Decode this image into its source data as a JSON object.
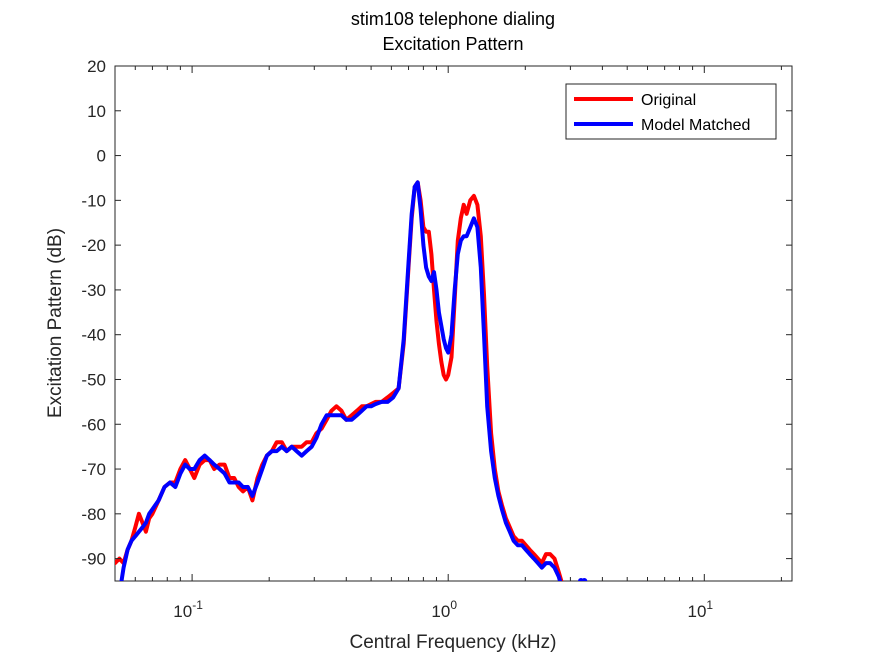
{
  "chart_data": {
    "type": "line",
    "title": "stim108 telephone dialing",
    "subtitle": "Excitation Pattern",
    "xlabel": "Central Frequency (kHz)",
    "ylabel": "Excitation Pattern (dB)",
    "x_scale": "log",
    "xlim": [
      0.05,
      22
    ],
    "ylim": [
      -95,
      20
    ],
    "x_ticks": [
      {
        "value": 0.1,
        "base": "10",
        "exp": "-1"
      },
      {
        "value": 1,
        "base": "10",
        "exp": "0"
      },
      {
        "value": 10,
        "base": "10",
        "exp": "1"
      }
    ],
    "y_ticks": [
      20,
      10,
      0,
      -10,
      -20,
      -30,
      -40,
      -50,
      -60,
      -70,
      -80,
      -90
    ],
    "grid": false,
    "legend": "top-right",
    "series": [
      {
        "name": "Original",
        "color": "#ff0000",
        "x": [
          0.05,
          0.052,
          0.054,
          0.056,
          0.058,
          0.06,
          0.062,
          0.064,
          0.066,
          0.068,
          0.07,
          0.074,
          0.078,
          0.082,
          0.086,
          0.09,
          0.094,
          0.098,
          0.102,
          0.107,
          0.112,
          0.117,
          0.122,
          0.128,
          0.134,
          0.14,
          0.146,
          0.152,
          0.158,
          0.165,
          0.172,
          0.18,
          0.188,
          0.196,
          0.205,
          0.214,
          0.224,
          0.234,
          0.245,
          0.256,
          0.268,
          0.28,
          0.293,
          0.306,
          0.32,
          0.335,
          0.35,
          0.366,
          0.383,
          0.4,
          0.42,
          0.44,
          0.46,
          0.48,
          0.5,
          0.52,
          0.55,
          0.58,
          0.61,
          0.64,
          0.67,
          0.7,
          0.72,
          0.74,
          0.76,
          0.78,
          0.8,
          0.82,
          0.84,
          0.86,
          0.88,
          0.9,
          0.92,
          0.94,
          0.96,
          0.98,
          1.0,
          1.03,
          1.06,
          1.09,
          1.12,
          1.15,
          1.18,
          1.22,
          1.26,
          1.3,
          1.34,
          1.38,
          1.42,
          1.47,
          1.52,
          1.57,
          1.62,
          1.68,
          1.74,
          1.8,
          1.87,
          1.94,
          2.01,
          2.08,
          2.16,
          2.24,
          2.32,
          2.41,
          2.5,
          2.6,
          2.7,
          2.8
        ],
        "y": [
          -91,
          -90,
          -91,
          -88,
          -86,
          -83,
          -80,
          -82,
          -84,
          -81,
          -80,
          -77,
          -74,
          -73,
          -73,
          -70,
          -68,
          -70,
          -72,
          -69,
          -68,
          -68,
          -70,
          -69,
          -69,
          -72,
          -72,
          -74,
          -75,
          -74,
          -77,
          -72,
          -69,
          -67,
          -66,
          -64,
          -64,
          -66,
          -65,
          -65,
          -65,
          -64,
          -64,
          -62,
          -61,
          -59,
          -57,
          -56,
          -57,
          -59,
          -58,
          -57,
          -56,
          -56,
          -55.5,
          -55,
          -55,
          -54,
          -53,
          -52,
          -42,
          -25,
          -14,
          -7,
          -6,
          -10,
          -16,
          -17,
          -17,
          -22,
          -30,
          -37,
          -42,
          -46,
          -49,
          -50,
          -49,
          -45,
          -32,
          -19,
          -14,
          -11,
          -13,
          -10,
          -9,
          -11,
          -18,
          -31,
          -47,
          -62,
          -70,
          -75,
          -78,
          -81,
          -83,
          -85,
          -86,
          -86,
          -87,
          -88,
          -89,
          -90,
          -91,
          -89,
          -89,
          -90,
          -93,
          -96
        ]
      },
      {
        "name": "Model Matched",
        "color": "#0000ff",
        "x": [
          0.05,
          0.052,
          0.054,
          0.056,
          0.058,
          0.06,
          0.062,
          0.064,
          0.066,
          0.068,
          0.07,
          0.074,
          0.078,
          0.082,
          0.086,
          0.09,
          0.094,
          0.098,
          0.102,
          0.107,
          0.112,
          0.117,
          0.122,
          0.128,
          0.134,
          0.14,
          0.146,
          0.152,
          0.158,
          0.165,
          0.172,
          0.18,
          0.188,
          0.196,
          0.205,
          0.214,
          0.224,
          0.234,
          0.245,
          0.256,
          0.268,
          0.28,
          0.293,
          0.306,
          0.32,
          0.335,
          0.35,
          0.366,
          0.383,
          0.4,
          0.42,
          0.44,
          0.46,
          0.48,
          0.5,
          0.52,
          0.55,
          0.58,
          0.61,
          0.64,
          0.67,
          0.7,
          0.72,
          0.74,
          0.76,
          0.78,
          0.8,
          0.82,
          0.84,
          0.86,
          0.88,
          0.9,
          0.92,
          0.94,
          0.96,
          0.98,
          1.0,
          1.03,
          1.06,
          1.09,
          1.12,
          1.15,
          1.18,
          1.22,
          1.26,
          1.3,
          1.34,
          1.38,
          1.42,
          1.47,
          1.52,
          1.57,
          1.62,
          1.68,
          1.74,
          1.8,
          1.87,
          1.94,
          2.01,
          2.08,
          2.16,
          2.24,
          2.32,
          2.41,
          2.5,
          2.6,
          2.7,
          2.8
        ],
        "y": [
          -96,
          -98,
          -92,
          -88,
          -86,
          -85,
          -84,
          -83,
          -82,
          -80,
          -79,
          -77,
          -74,
          -73,
          -74,
          -71,
          -69,
          -70,
          -70,
          -68,
          -67,
          -68,
          -69,
          -70,
          -71,
          -73,
          -73,
          -73,
          -74,
          -74,
          -76,
          -73,
          -70,
          -67,
          -66,
          -66,
          -65,
          -66,
          -65,
          -66,
          -67,
          -66,
          -65,
          -63,
          -60,
          -58,
          -58,
          -58,
          -58,
          -59,
          -59,
          -58,
          -57,
          -56,
          -56,
          -55.5,
          -55,
          -55,
          -54,
          -52,
          -41,
          -24,
          -13,
          -7,
          -6,
          -12,
          -20,
          -25,
          -27,
          -28,
          -26,
          -30,
          -35,
          -38,
          -41,
          -43,
          -44,
          -40,
          -30,
          -22,
          -19,
          -18,
          -18,
          -16,
          -14,
          -16,
          -25,
          -40,
          -56,
          -66,
          -72,
          -76,
          -79,
          -82,
          -84,
          -86,
          -87,
          -87,
          -88,
          -89,
          -90,
          -91,
          -92,
          -91,
          -91,
          -92,
          -94,
          -97
        ]
      }
    ],
    "extra_points": [
      {
        "x": 3.3,
        "y": -95,
        "color": "#0000ff"
      },
      {
        "x": 3.4,
        "y": -95,
        "color": "#0000ff"
      }
    ]
  }
}
